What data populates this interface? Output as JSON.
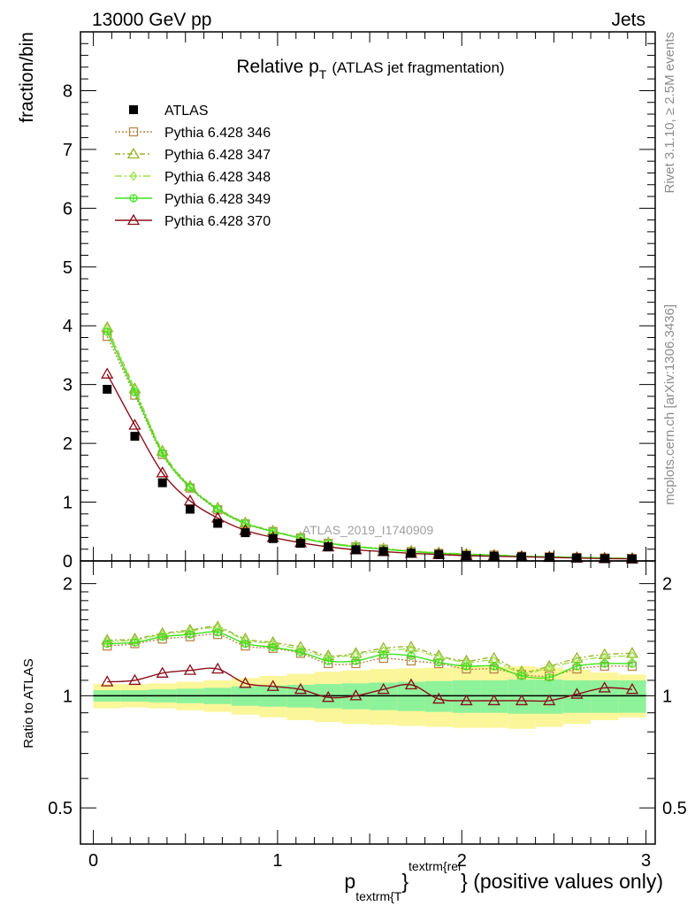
{
  "header": {
    "left": "13000 GeV pp",
    "right": "Jets"
  },
  "side_text": {
    "rivet": "Rivet 3.1.10, ≥ 2.5M events",
    "mcplots": "mcplots.cern.ch [arXiv:1306.3436]"
  },
  "chart_data": [
    {
      "type": "line",
      "panel": "main",
      "title_main": "Relative p",
      "title_sub": "T",
      "title_rest": "(ATLAS jet fragmentation)",
      "ylabel": "fraction/bin",
      "watermark": "ATLAS_2019_I1740909",
      "xlim": [
        -0.07,
        3.05
      ],
      "ylim": [
        0,
        9.0
      ],
      "y_ticks": [
        0,
        1,
        2,
        3,
        4,
        5,
        6,
        7,
        8
      ],
      "y_ticklabels": [
        "0",
        "1",
        "2",
        "3",
        "4",
        "5",
        "6",
        "7",
        "8"
      ],
      "legend_position": "top-left",
      "x": [
        0.075,
        0.225,
        0.375,
        0.525,
        0.675,
        0.825,
        0.975,
        1.125,
        1.275,
        1.425,
        1.575,
        1.725,
        1.875,
        2.025,
        2.175,
        2.325,
        2.475,
        2.625,
        2.775,
        2.925
      ],
      "data": {
        "name": "ATLAS",
        "values": [
          2.92,
          2.12,
          1.33,
          0.88,
          0.64,
          0.48,
          0.38,
          0.3,
          0.24,
          0.19,
          0.16,
          0.13,
          0.11,
          0.09,
          0.08,
          0.07,
          0.06,
          0.05,
          0.04,
          0.035
        ],
        "color": "#000000"
      },
      "series": [
        {
          "name": "Pythia 6.428 346",
          "color": "#b8864a",
          "dash": "2,2",
          "marker": "square",
          "values": [
            3.82,
            2.82,
            1.81,
            1.24,
            0.87,
            0.63,
            0.5,
            0.39,
            0.3,
            0.24,
            0.2,
            0.16,
            0.13,
            0.11,
            0.1,
            0.08,
            0.07,
            0.06,
            0.05,
            0.04
          ]
        },
        {
          "name": "Pythia 6.428 347",
          "color": "#9ab22e",
          "dash": "6,3,2,3",
          "marker": "triangle",
          "values": [
            3.97,
            2.93,
            1.87,
            1.27,
            0.9,
            0.65,
            0.51,
            0.4,
            0.31,
            0.25,
            0.21,
            0.17,
            0.14,
            0.12,
            0.1,
            0.08,
            0.07,
            0.06,
            0.05,
            0.045
          ]
        },
        {
          "name": "Pythia 6.428 348",
          "color": "#9de34a",
          "dash": "8,3,2,3",
          "marker": "diamond",
          "values": [
            3.95,
            2.92,
            1.86,
            1.26,
            0.89,
            0.65,
            0.5,
            0.4,
            0.31,
            0.25,
            0.21,
            0.17,
            0.14,
            0.12,
            0.1,
            0.08,
            0.07,
            0.06,
            0.05,
            0.045
          ]
        },
        {
          "name": "Pythia 6.428 349",
          "color": "#3ee31d",
          "dash": "",
          "marker": "circle-cross",
          "values": [
            3.9,
            2.87,
            1.83,
            1.25,
            0.88,
            0.64,
            0.5,
            0.39,
            0.3,
            0.24,
            0.2,
            0.16,
            0.13,
            0.11,
            0.1,
            0.08,
            0.07,
            0.06,
            0.05,
            0.04
          ]
        },
        {
          "name": "Pythia 6.428 370",
          "color": "#8b0e1a",
          "dash": "",
          "marker": "triangle",
          "values": [
            3.18,
            2.31,
            1.5,
            1.02,
            0.73,
            0.52,
            0.4,
            0.31,
            0.24,
            0.19,
            0.16,
            0.13,
            0.11,
            0.09,
            0.08,
            0.07,
            0.06,
            0.05,
            0.04,
            0.035
          ]
        }
      ]
    },
    {
      "type": "line",
      "panel": "ratio",
      "ylabel": "Ratio to ATLAS",
      "xlabel_p": "p",
      "xlabel_sub": "textrm{T",
      "xlabel_brace": "}",
      "xlabel_sup": "textrm{rel",
      "xlabel_rest": "} (positive values only)",
      "xlim": [
        -0.07,
        3.05
      ],
      "ylim": [
        0.4,
        2.3
      ],
      "log_y": true,
      "y_ticks": [
        0.5,
        1,
        2
      ],
      "y_ticklabels": [
        "0.5",
        "1",
        "2"
      ],
      "x_ticks": [
        0,
        1,
        2,
        3
      ],
      "x_ticklabels": [
        "0",
        "1",
        "2",
        "3"
      ],
      "x": [
        0.075,
        0.225,
        0.375,
        0.525,
        0.675,
        0.825,
        0.975,
        1.125,
        1.275,
        1.425,
        1.575,
        1.725,
        1.875,
        2.025,
        2.175,
        2.325,
        2.475,
        2.625,
        2.775,
        2.925
      ],
      "band_stat": {
        "lo": [
          0.965,
          0.965,
          0.96,
          0.955,
          0.95,
          0.94,
          0.935,
          0.93,
          0.925,
          0.92,
          0.915,
          0.91,
          0.905,
          0.9,
          0.9,
          0.895,
          0.895,
          0.9,
          0.9,
          0.9
        ],
        "hi": [
          1.035,
          1.035,
          1.04,
          1.045,
          1.05,
          1.06,
          1.065,
          1.07,
          1.075,
          1.08,
          1.085,
          1.09,
          1.095,
          1.1,
          1.1,
          1.105,
          1.105,
          1.1,
          1.1,
          1.1
        ],
        "color": "#8ef29a"
      },
      "band_total": {
        "lo": [
          0.925,
          0.93,
          0.925,
          0.915,
          0.905,
          0.89,
          0.875,
          0.86,
          0.85,
          0.84,
          0.835,
          0.83,
          0.825,
          0.82,
          0.82,
          0.815,
          0.825,
          0.84,
          0.86,
          0.875
        ],
        "hi": [
          1.075,
          1.075,
          1.08,
          1.09,
          1.1,
          1.115,
          1.13,
          1.145,
          1.16,
          1.17,
          1.18,
          1.185,
          1.19,
          1.2,
          1.2,
          1.2,
          1.19,
          1.175,
          1.155,
          1.14
        ],
        "color": "#fbf69a"
      },
      "series": [
        {
          "name": "Pythia 6.428 346",
          "color": "#b8864a",
          "dash": "2,2",
          "marker": "square",
          "values": [
            1.36,
            1.38,
            1.42,
            1.44,
            1.46,
            1.36,
            1.34,
            1.3,
            1.22,
            1.22,
            1.26,
            1.24,
            1.22,
            1.18,
            1.18,
            1.14,
            1.13,
            1.18,
            1.2,
            1.2
          ]
        },
        {
          "name": "Pythia 6.428 347",
          "color": "#9ab22e",
          "dash": "6,3,2,3",
          "marker": "triangle",
          "values": [
            1.41,
            1.42,
            1.47,
            1.5,
            1.53,
            1.42,
            1.39,
            1.35,
            1.28,
            1.3,
            1.34,
            1.35,
            1.28,
            1.24,
            1.26,
            1.16,
            1.2,
            1.26,
            1.29,
            1.3
          ]
        },
        {
          "name": "Pythia 6.428 348",
          "color": "#9de34a",
          "dash": "8,3,2,3",
          "marker": "diamond",
          "values": [
            1.4,
            1.41,
            1.46,
            1.49,
            1.52,
            1.41,
            1.38,
            1.33,
            1.27,
            1.29,
            1.32,
            1.33,
            1.27,
            1.23,
            1.24,
            1.15,
            1.19,
            1.24,
            1.27,
            1.28
          ]
        },
        {
          "name": "Pythia 6.428 349",
          "color": "#3ee31d",
          "dash": "",
          "marker": "circle-cross",
          "values": [
            1.38,
            1.39,
            1.44,
            1.46,
            1.48,
            1.38,
            1.35,
            1.31,
            1.24,
            1.24,
            1.29,
            1.28,
            1.23,
            1.2,
            1.2,
            1.13,
            1.12,
            1.2,
            1.22,
            1.22
          ]
        },
        {
          "name": "Pythia 6.428 370",
          "color": "#8b0e1a",
          "dash": "",
          "marker": "triangle",
          "values": [
            1.09,
            1.1,
            1.15,
            1.17,
            1.18,
            1.08,
            1.06,
            1.04,
            0.99,
            1.0,
            1.04,
            1.07,
            0.98,
            0.97,
            0.97,
            0.97,
            0.97,
            1.01,
            1.05,
            1.04
          ]
        }
      ]
    }
  ]
}
